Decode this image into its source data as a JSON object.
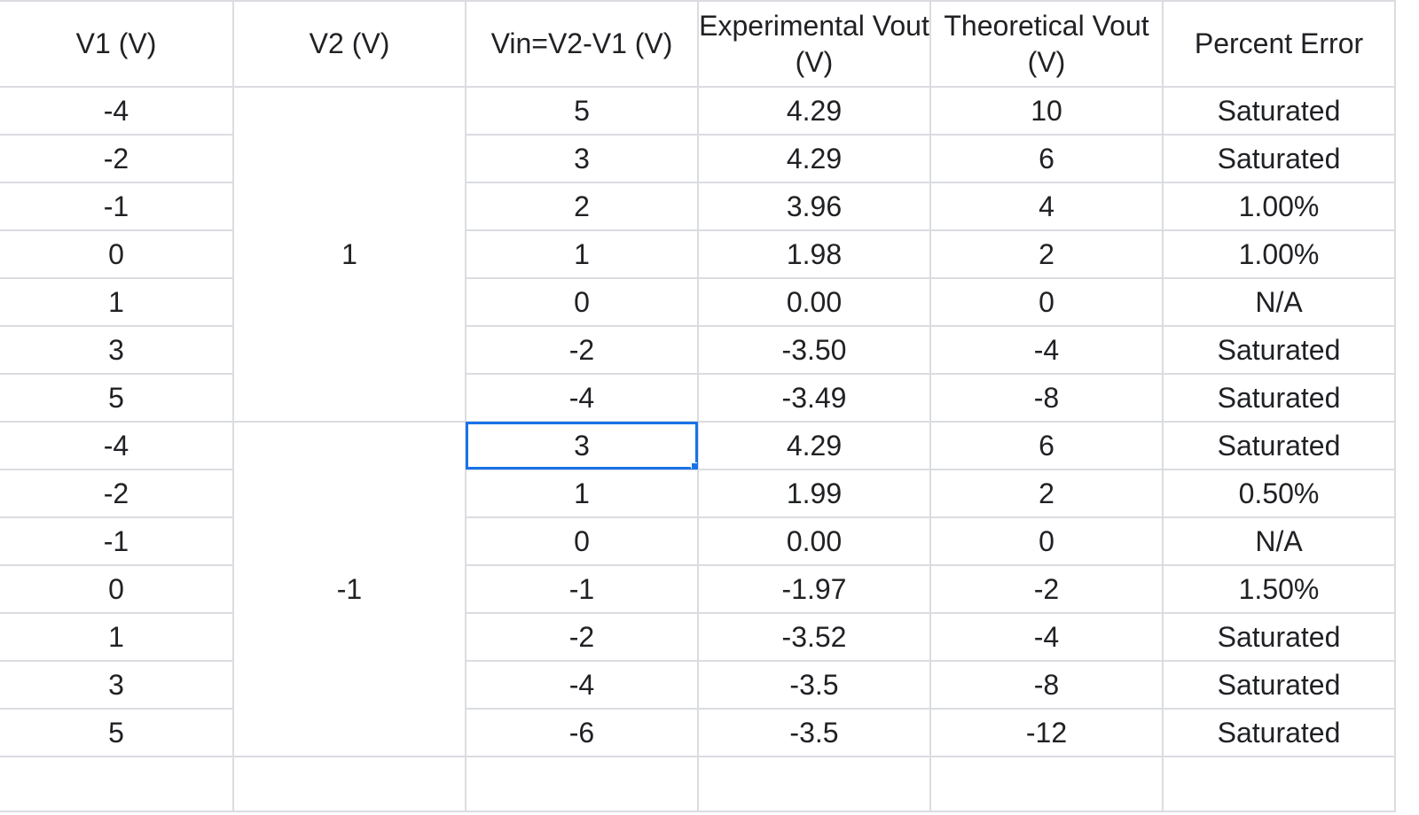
{
  "table": {
    "headers": [
      "V1 (V)",
      "V2 (V)",
      "Vin=V2-V1 (V)",
      "Experimental Vout (V)",
      "Theoretical Vout (V)",
      "Percent Error"
    ],
    "group_v2": [
      "1",
      "-1"
    ],
    "rows": [
      {
        "v1": "-4",
        "vin": "5",
        "exp": "4.29",
        "theo": "10",
        "err": "Saturated"
      },
      {
        "v1": "-2",
        "vin": "3",
        "exp": "4.29",
        "theo": "6",
        "err": "Saturated"
      },
      {
        "v1": "-1",
        "vin": "2",
        "exp": "3.96",
        "theo": "4",
        "err": "1.00%"
      },
      {
        "v1": "0",
        "vin": "1",
        "exp": "1.98",
        "theo": "2",
        "err": "1.00%"
      },
      {
        "v1": "1",
        "vin": "0",
        "exp": "0.00",
        "theo": "0",
        "err": "N/A"
      },
      {
        "v1": "3",
        "vin": "-2",
        "exp": "-3.50",
        "theo": "-4",
        "err": "Saturated"
      },
      {
        "v1": "5",
        "vin": "-4",
        "exp": "-3.49",
        "theo": "-8",
        "err": "Saturated"
      },
      {
        "v1": "-4",
        "vin": "3",
        "exp": "4.29",
        "theo": "6",
        "err": "Saturated"
      },
      {
        "v1": "-2",
        "vin": "1",
        "exp": "1.99",
        "theo": "2",
        "err": "0.50%"
      },
      {
        "v1": "-1",
        "vin": "0",
        "exp": "0.00",
        "theo": "0",
        "err": "N/A"
      },
      {
        "v1": "0",
        "vin": "-1",
        "exp": "-1.97",
        "theo": "-2",
        "err": "1.50%"
      },
      {
        "v1": "1",
        "vin": "-2",
        "exp": "-3.52",
        "theo": "-4",
        "err": "Saturated"
      },
      {
        "v1": "3",
        "vin": "-4",
        "exp": "-3.5",
        "theo": "-8",
        "err": "Saturated"
      },
      {
        "v1": "5",
        "vin": "-6",
        "exp": "-3.5",
        "theo": "-12",
        "err": "Saturated"
      }
    ]
  },
  "selection": {
    "accent_color": "#1a73e8"
  }
}
